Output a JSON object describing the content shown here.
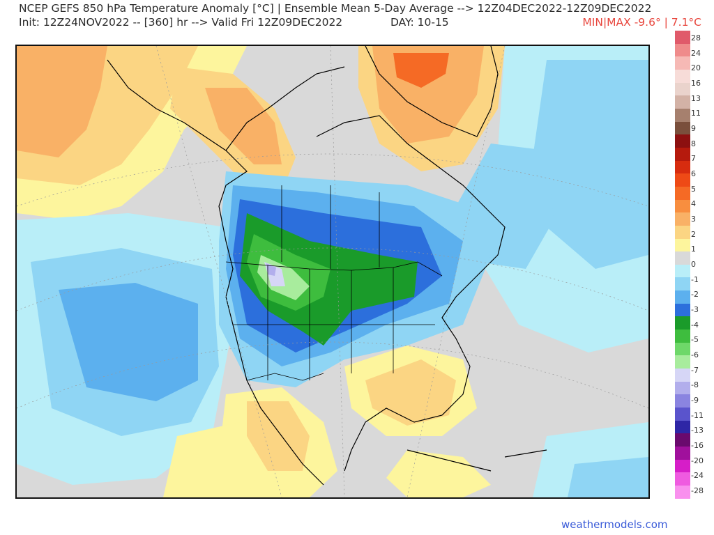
{
  "header": {
    "line1": "NCEP GEFS 850 hPa Temperature Anomaly [°C] | Ensemble Mean 5-Day Average --> 12Z04DEC2022-12Z09DEC2022",
    "line2": "Init: 12Z24NOV2022 -- [360] hr --> Valid Fri 12Z09DEC2022",
    "day": "DAY: 10-15",
    "minmax": "MIN|MAX -9.6° | 7.1°C"
  },
  "colorbar": {
    "labels": [
      "28",
      "24",
      "20",
      "16",
      "13",
      "11",
      "9",
      "8",
      "7",
      "6",
      "5",
      "4",
      "3",
      "2",
      "1",
      "0",
      "-1",
      "-2",
      "-3",
      "-4",
      "-5",
      "-6",
      "-7",
      "-8",
      "-9",
      "-11",
      "-13",
      "-16",
      "-20",
      "-24",
      "-28"
    ],
    "colors": [
      "#e05a6a",
      "#ef8b8b",
      "#f6b9b5",
      "#f7dcd8",
      "#ead3cc",
      "#d3b2a6",
      "#a6806e",
      "#7a4f3c",
      "#8c1010",
      "#b51a0d",
      "#d72c0f",
      "#ee4a16",
      "#f56a25",
      "#f88e3f",
      "#f9b166",
      "#fbd583",
      "#fdf59d",
      "#d9d9d9",
      "#b9eef8",
      "#8fd5f4",
      "#5cb0ee",
      "#2c6fdc",
      "#1a9b2a",
      "#3ebd3e",
      "#6ed869",
      "#a8ec9d",
      "#d6d6f6",
      "#b2aeec",
      "#8a84e0",
      "#5a54cc",
      "#2e26a6",
      "#6a0a6e",
      "#a0109c",
      "#d61ec8",
      "#ef5be0",
      "#f990ee"
    ]
  },
  "footer": {
    "credit": "weathermodels.com"
  }
}
